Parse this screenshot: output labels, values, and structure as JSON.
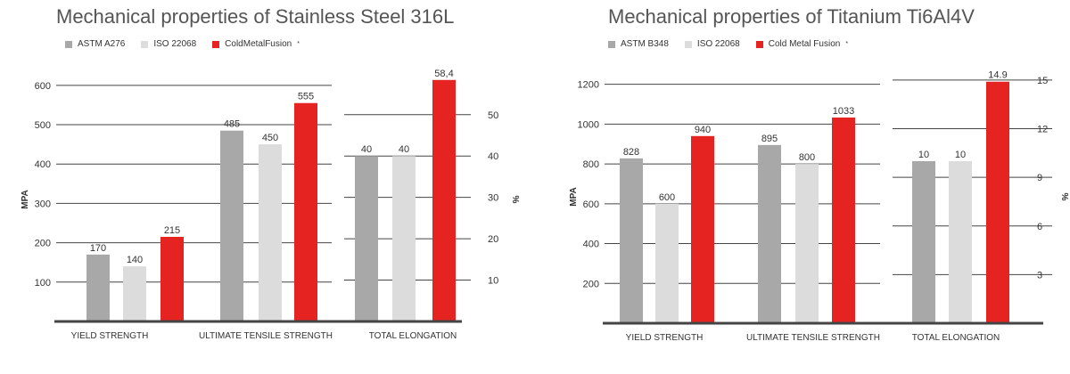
{
  "chart_data": [
    {
      "type": "bar",
      "title": "Mechanical properties of Stainless Steel 316L",
      "ylabel": "MPA",
      "y2label": "%",
      "ylim": [
        0,
        620
      ],
      "y2lim": [
        0,
        59
      ],
      "yticks": [
        100,
        200,
        300,
        400,
        500,
        600
      ],
      "y2ticks": [
        10,
        20,
        30,
        40,
        50
      ],
      "categories": [
        "YIELD STRENGTH",
        "ULTIMATE TENSILE STRENGTH",
        "TOTAL ELONGATION"
      ],
      "secondary_axis_categories": [
        "TOTAL ELONGATION"
      ],
      "series": [
        {
          "name": "ASTM A276",
          "color": "#a8a8a8",
          "values": [
            170,
            485,
            40
          ],
          "labels": [
            "170",
            "485",
            "40"
          ]
        },
        {
          "name": "ISO 22068",
          "color": "#dcdcdc",
          "values": [
            140,
            450,
            40
          ],
          "labels": [
            "140",
            "450",
            "40"
          ]
        },
        {
          "name": "ColdMetalFusion",
          "color": "#e52421",
          "values": [
            215,
            555,
            58.4
          ],
          "labels": [
            "215",
            "555",
            "58,4"
          ]
        }
      ],
      "legend_suffix": "*",
      "grid": true,
      "legend_position": "top-left"
    },
    {
      "type": "bar",
      "title": "Mechanical properties of Titanium Ti6Al4V",
      "ylabel": "MPA",
      "y2label": "%",
      "ylim": [
        0,
        1270
      ],
      "y2lim": [
        0,
        15.6
      ],
      "yticks": [
        200,
        400,
        600,
        800,
        1000,
        1200
      ],
      "y2ticks": [
        3,
        6,
        9,
        12,
        15
      ],
      "categories": [
        "YIELD STRENGTH",
        "ULTIMATE TENSILE STRENGTH",
        "TOTAL ELONGATION"
      ],
      "secondary_axis_categories": [
        "TOTAL ELONGATION"
      ],
      "series": [
        {
          "name": "ASTM B348",
          "color": "#a8a8a8",
          "values": [
            828,
            895,
            10
          ],
          "labels": [
            "828",
            "895",
            "10"
          ]
        },
        {
          "name": "ISO 22068",
          "color": "#dcdcdc",
          "values": [
            600,
            800,
            10
          ],
          "labels": [
            "600",
            "800",
            "10"
          ]
        },
        {
          "name": "Cold Metal Fusion",
          "color": "#e52421",
          "values": [
            940,
            1033,
            14.9
          ],
          "labels": [
            "940",
            "1033",
            "14.9"
          ]
        }
      ],
      "legend_suffix": "*",
      "grid": true,
      "legend_position": "top-left"
    }
  ]
}
